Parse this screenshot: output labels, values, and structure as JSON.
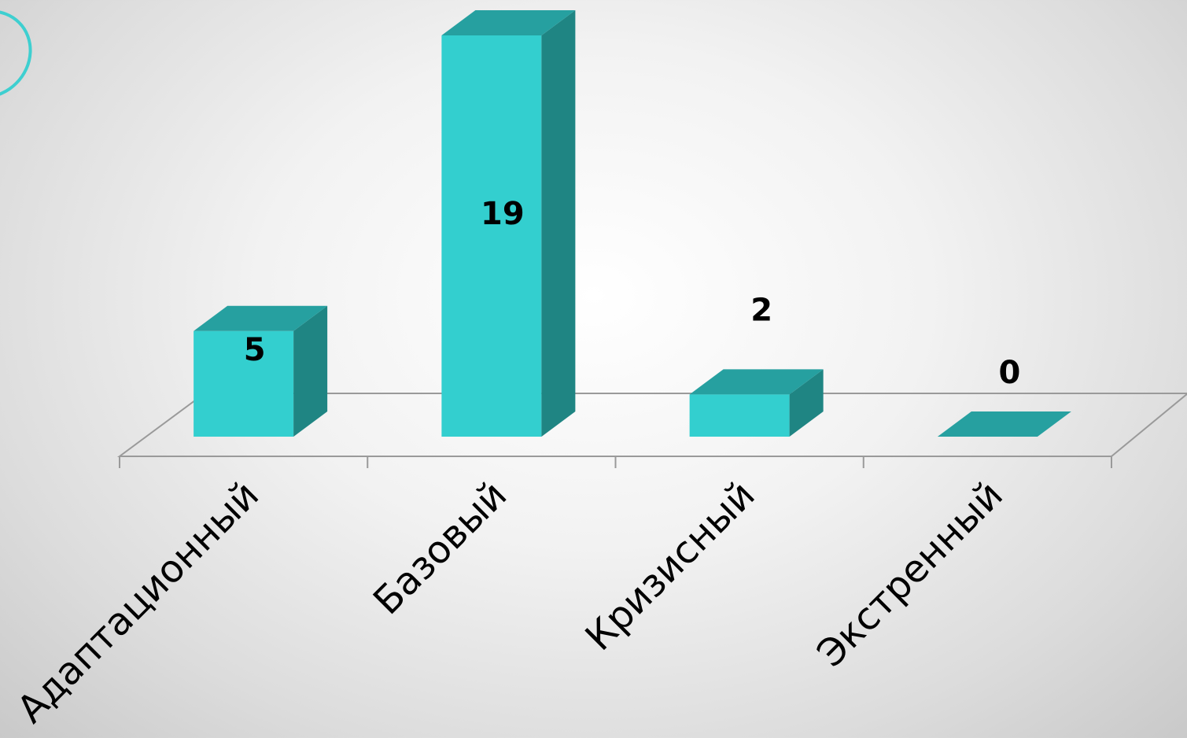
{
  "chart_data": {
    "type": "bar",
    "style": "3d-column",
    "categories": [
      "Адаптационный",
      "Базовый",
      "Кризисный",
      "Экстренный"
    ],
    "values": [
      5,
      19,
      2,
      0
    ],
    "data_labels": [
      "5",
      "19",
      "2",
      "0"
    ],
    "title": "",
    "xlabel": "",
    "ylabel": "",
    "ylim": [
      0,
      19
    ],
    "grid": false,
    "legend": "none",
    "colors": {
      "bar_front": "#33cfcf",
      "bar_top": "#26a0a0",
      "bar_side": "#1f8583",
      "floor_line": "#9a9a9a",
      "label_text": "#000000"
    }
  }
}
